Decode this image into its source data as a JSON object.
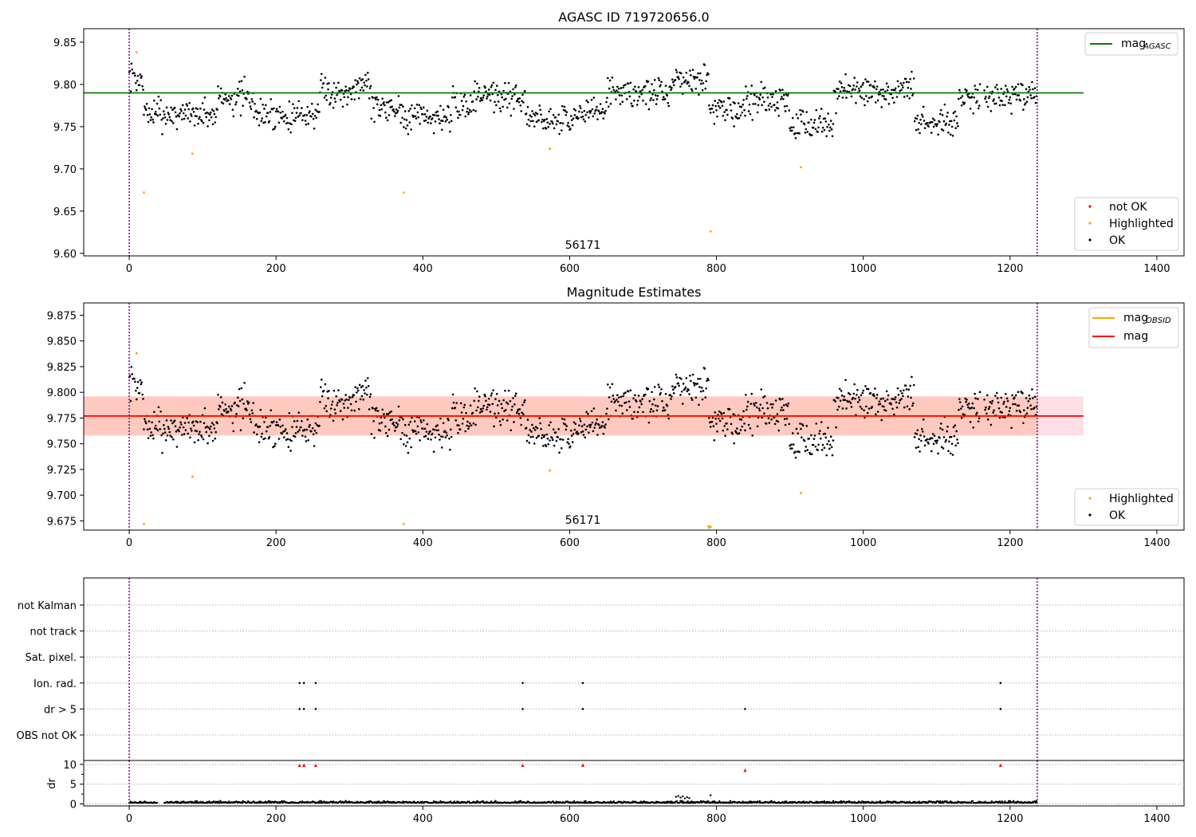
{
  "figure": {
    "background": "#ffffff"
  },
  "colors": {
    "ok": "#000000",
    "highlighted": "#ffa500",
    "not_ok": "#ff0000",
    "agasc_line": "#008000",
    "obsid_mag": "#ffa500",
    "mag": "#ff0000",
    "band_outer": "#ffc0cb",
    "band_inner": "#ffa07a",
    "obs_boundary": "#800080",
    "grid": "#b0b0b0"
  },
  "chart_data": [
    {
      "type": "scatter",
      "title": "AGASC ID 719720656.0",
      "xlim": [
        -62,
        1437
      ],
      "ylim": [
        9.597,
        9.866
      ],
      "xticks": [
        0,
        200,
        400,
        600,
        800,
        1000,
        1200,
        1400
      ],
      "yticks": [
        9.6,
        9.65,
        9.7,
        9.75,
        9.8,
        9.85
      ],
      "ytick_labels": [
        "9.60",
        "9.65",
        "9.70",
        "9.75",
        "9.80",
        "9.85"
      ],
      "hlines": [
        {
          "name": "mag_AGASC",
          "y": 9.79,
          "xrange": [
            -62,
            1300
          ],
          "color": "#008000"
        }
      ],
      "vlines": [
        0,
        1237
      ],
      "annotation": {
        "text": "56171",
        "x": 617,
        "y": 9.608
      },
      "legend_upper": {
        "position": "upper right",
        "entries": [
          {
            "label": "mag",
            "sub": "AGASC",
            "color": "#008000",
            "kind": "line"
          }
        ]
      },
      "legend_lower": {
        "position": "lower right",
        "entries": [
          {
            "label": "not OK",
            "color": "#ff0000",
            "kind": "dot"
          },
          {
            "label": "Highlighted",
            "color": "#ffa500",
            "kind": "dot"
          },
          {
            "label": "OK",
            "color": "#000000",
            "kind": "dot"
          }
        ]
      },
      "series": [
        {
          "name": "Highlighted",
          "x": [
            10,
            20,
            86,
            374,
            573,
            792,
            915
          ],
          "y": [
            9.838,
            9.672,
            9.718,
            9.672,
            9.724,
            9.626,
            9.702
          ]
        },
        {
          "name": "OK",
          "generator": "light_curve",
          "n": 1237,
          "x_range": [
            0,
            1237
          ],
          "y_range": [
            9.73,
            9.827
          ]
        }
      ]
    },
    {
      "type": "scatter",
      "title": "Magnitude Estimates",
      "xlim": [
        -62,
        1437
      ],
      "ylim": [
        9.666,
        9.887
      ],
      "xticks": [
        0,
        200,
        400,
        600,
        800,
        1000,
        1200,
        1400
      ],
      "yticks": [
        9.675,
        9.7,
        9.725,
        9.75,
        9.775,
        9.8,
        9.825,
        9.85,
        9.875
      ],
      "ytick_labels": [
        "9.675",
        "9.700",
        "9.725",
        "9.750",
        "9.775",
        "9.800",
        "9.825",
        "9.850",
        "9.875"
      ],
      "hlines": [
        {
          "name": "mag",
          "y": 9.777,
          "xrange": [
            -62,
            1300
          ],
          "color": "#ff0000"
        }
      ],
      "bands": [
        {
          "y0": 9.758,
          "y1": 9.796,
          "xrange": [
            -62,
            1300
          ],
          "color": "#ffc0cb"
        },
        {
          "y0": 9.758,
          "y1": 9.796,
          "xrange": [
            -62,
            1237
          ],
          "color": "#ffa07a"
        }
      ],
      "obsid_line": {
        "y": 9.777,
        "xrange": [
          0,
          1237
        ],
        "color": "#ffa500"
      },
      "vlines": [
        0,
        1237
      ],
      "annotation": {
        "text": "56171",
        "x": 617,
        "y": 9.677
      },
      "legend_upper": {
        "position": "upper right",
        "entries": [
          {
            "label": "mag",
            "sub": "OBSID",
            "color": "#ffa500",
            "kind": "line"
          },
          {
            "label": "mag",
            "sub": "",
            "color": "#ff0000",
            "kind": "line"
          }
        ]
      },
      "legend_lower": {
        "position": "lower right",
        "entries": [
          {
            "label": "Highlighted",
            "color": "#ffa500",
            "kind": "dot"
          },
          {
            "label": "OK",
            "color": "#000000",
            "kind": "dot"
          }
        ]
      },
      "series": [
        {
          "name": "Highlighted",
          "x": [
            10,
            20,
            86,
            374,
            573,
            792,
            915
          ],
          "y": [
            9.838,
            9.672,
            9.718,
            9.672,
            9.724,
            9.669,
            9.702
          ]
        },
        {
          "name": "OK",
          "generator": "light_curve",
          "n": 1237,
          "x_range": [
            0,
            1237
          ],
          "y_range": [
            9.73,
            9.827
          ]
        }
      ]
    },
    {
      "type": "scatter",
      "title": "",
      "xlim": [
        -62,
        1437
      ],
      "categories": [
        "not Kalman",
        "not track",
        "Sat. pixel.",
        "Ion. rad.",
        "dr > 5",
        "OBS not OK"
      ],
      "vlines": [
        0,
        1237
      ],
      "flags": [
        {
          "category": "Ion. rad.",
          "x": [
            232,
            238,
            254,
            536,
            618,
            1187
          ]
        },
        {
          "category": "dr > 5",
          "x": [
            232,
            238,
            254,
            536,
            618,
            839,
            1187
          ]
        }
      ]
    },
    {
      "type": "scatter",
      "title": "",
      "xlim": [
        -62,
        1437
      ],
      "ylim": [
        -0.5,
        11
      ],
      "ylabel": "dr",
      "xticks": [
        0,
        200,
        400,
        600,
        800,
        1000,
        1200,
        1400
      ],
      "yticks": [
        0,
        5,
        10
      ],
      "minor_yticks": [
        2.5,
        7.5
      ],
      "vlines": [
        0,
        1237
      ],
      "series": [
        {
          "name": "dr",
          "generator": "dr_noise",
          "n": 1237,
          "x_range": [
            0,
            1237
          ],
          "y_range": [
            0,
            1.2
          ]
        },
        {
          "name": "dr bump",
          "x": [
            745,
            748,
            751,
            754,
            757,
            760,
            763,
            792
          ],
          "y": [
            1.8,
            2.0,
            1.6,
            1.9,
            1.4,
            1.7,
            1.5,
            2.2
          ]
        },
        {
          "name": "dr > 5",
          "marker": "triangle",
          "x": [
            232,
            238,
            254,
            536,
            618,
            839,
            1187
          ],
          "y": [
            9.8,
            9.8,
            9.8,
            9.8,
            9.8,
            8.5,
            9.8
          ]
        }
      ]
    }
  ]
}
